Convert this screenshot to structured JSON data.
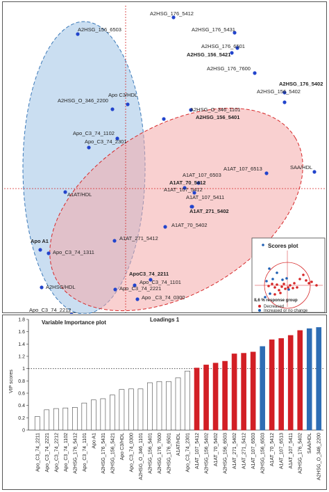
{
  "loadings_plot": {
    "points": [
      {
        "label": "A2HSG_176_5412",
        "bold": false
      },
      {
        "label": "A2HSG_156_6503",
        "bold": false
      },
      {
        "label": "A2HSG_176_5431",
        "bold": false
      },
      {
        "label": "A2HSG_176_6501",
        "bold": false
      },
      {
        "label": "A2HSG_156_5421",
        "bold": true
      },
      {
        "label": "A2HSG_176_7600",
        "bold": false
      },
      {
        "label": "A2HSG_176_5402",
        "bold": true
      },
      {
        "label": "A2HSG_156_5402",
        "bold": false
      },
      {
        "label": "Apo C3/HDL",
        "bold": false
      },
      {
        "label": "A2HSG_O_346_2200",
        "bold": false
      },
      {
        "label": "A2HSG_O_346_1101",
        "bold": false
      },
      {
        "label": "A2HSG_156_5401",
        "bold": true
      },
      {
        "label": "Apo_C3_74_1102",
        "bold": false
      },
      {
        "label": "Apo_C3_74_2301",
        "bold": false
      },
      {
        "label": "A1AT_107_6513",
        "bold": false
      },
      {
        "label": "SAA/HDL",
        "bold": false
      },
      {
        "label": "A1AT_107_6503",
        "bold": false
      },
      {
        "label": "A1AT_70_5412",
        "bold": true
      },
      {
        "label": "A1AT/HDL",
        "bold": false
      },
      {
        "label": "A1AT_107_5412",
        "bold": false
      },
      {
        "label": "A1AT_107_5411",
        "bold": false
      },
      {
        "label": "A1AT_271_5402",
        "bold": true
      },
      {
        "label": "A1AT_70_5402",
        "bold": false
      },
      {
        "label": "A1AT_271_5412",
        "bold": false
      },
      {
        "label": "Apo A1",
        "bold": true
      },
      {
        "label": "Apo_C3_74_1311",
        "bold": false
      },
      {
        "label": "ApoC3_74_2211",
        "bold": true
      },
      {
        "label": "Apo_C3_74_1101",
        "bold": false
      },
      {
        "label": "A2HSG/HDL",
        "bold": false
      },
      {
        "label": "Apo_C3_74_2221",
        "bold": false
      },
      {
        "label": "Apo _C3_74_0300",
        "bold": false
      },
      {
        "label": "Apo_C3_74_2212",
        "bold": false
      }
    ]
  },
  "scores_inset": {
    "title": "Scores plot",
    "legend_title": "IL6 % response group",
    "legend": [
      {
        "label": "Decreased",
        "color": "#d62728"
      },
      {
        "label": "Increased or no change",
        "color": "#1f5fb4"
      }
    ]
  },
  "chart_data": {
    "type": "bar",
    "title": "Variable Importance plot",
    "subtitle": "Loadings 1",
    "ylabel": "VIP scores",
    "ylim": [
      0,
      1.8
    ],
    "yticks": [
      0,
      0.2,
      0.4,
      0.6,
      0.8,
      1,
      1.2,
      1.4,
      1.6,
      1.8
    ],
    "threshold": 1,
    "categories": [
      "Apo_C3_74_2211",
      "Apo_C3_74_2221",
      "Apo_C3_74_2212",
      "Apo_C3_74_1102",
      "A2HSG_176_5412",
      "Apo_C3_74_1101",
      "Apo A1",
      "A2HSG_176_5431",
      "A2HSG_156_5421",
      "Apo C3/HDL",
      "Apo_C3_74_0300",
      "A2HSG_O_346_1101",
      "A2HSG_156_5401",
      "A2HSG_176_7600",
      "A2HSG_176_6501",
      "A1AT/HDL",
      "Apo_C3_74_2301",
      "A1AT_107_5412",
      "A2HSG_156_5402",
      "A1AT_70_5402",
      "A2HSG_156_6503",
      "A1AT_271_5402",
      "A1AT_271_5412",
      "A1AT_107_6503",
      "A2HSG_156_6503",
      "A1AT_70_5412",
      "A1AT_107_6513",
      "A1AT_107_5411",
      "A2HSG_176_5402",
      "SAA/HDL",
      "A2HSG_O_346_2200"
    ],
    "values": [
      0.22,
      0.33,
      0.35,
      0.36,
      0.37,
      0.44,
      0.49,
      0.51,
      0.57,
      0.66,
      0.67,
      0.67,
      0.77,
      0.79,
      0.79,
      0.85,
      0.96,
      1.01,
      1.06,
      1.09,
      1.12,
      1.24,
      1.25,
      1.27,
      1.36,
      1.47,
      1.49,
      1.54,
      1.62,
      1.65,
      1.67
    ],
    "bar_colors": [
      "white",
      "white",
      "white",
      "white",
      "white",
      "white",
      "white",
      "white",
      "white",
      "white",
      "white",
      "white",
      "white",
      "white",
      "white",
      "white",
      "white",
      "red",
      "red",
      "red",
      "red",
      "red",
      "red",
      "red",
      "blue",
      "red",
      "red",
      "red",
      "red",
      "blue",
      "blue"
    ],
    "color_map": {
      "white": "#ffffff",
      "red": "#d21f25",
      "blue": "#2e6db4"
    }
  }
}
